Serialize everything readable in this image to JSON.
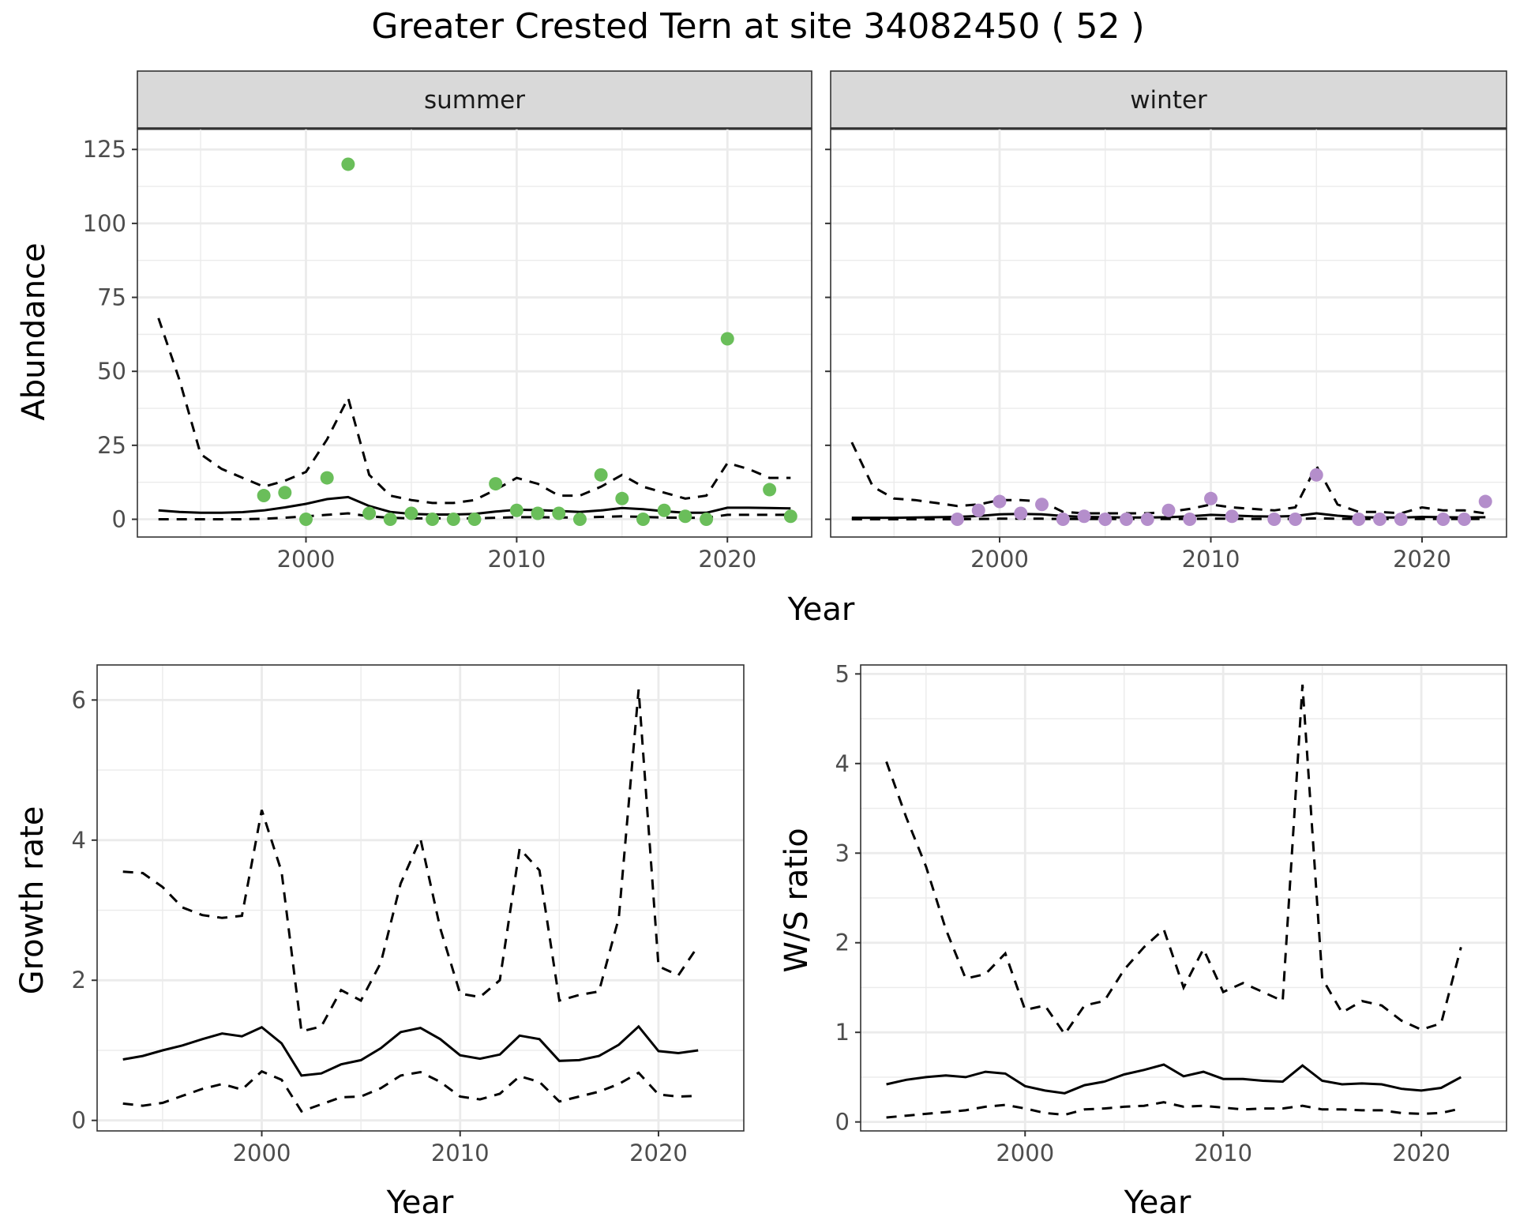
{
  "figure": {
    "title": "Greater Crested Tern at site 34082450 ( 52 )"
  },
  "chart_data": [
    {
      "type": "line",
      "panel": "summer",
      "strip_label": "summer",
      "xlabel": "Year",
      "ylabel": "Abundance",
      "xlim": [
        1992,
        2024
      ],
      "ylim": [
        -6,
        132
      ],
      "xticks": [
        2000,
        2010,
        2020
      ],
      "yticks": [
        0,
        25,
        50,
        75,
        100,
        125
      ],
      "grid": true,
      "point_color": "#6ABE5A",
      "series": [
        {
          "role": "estimate",
          "style": "solid",
          "x": [
            1993,
            1994,
            1995,
            1996,
            1997,
            1998,
            1999,
            2000,
            2001,
            2002,
            2003,
            2004,
            2005,
            2006,
            2007,
            2008,
            2009,
            2010,
            2011,
            2012,
            2013,
            2014,
            2015,
            2016,
            2017,
            2018,
            2019,
            2020,
            2021,
            2022,
            2023
          ],
          "y": [
            3,
            2.5,
            2.2,
            2.2,
            2.4,
            3,
            4,
            5.2,
            6.8,
            7.5,
            4.5,
            2.5,
            1.8,
            1.6,
            1.6,
            1.8,
            2.6,
            3.2,
            3.1,
            2.8,
            2.5,
            3,
            3.8,
            3.4,
            2.7,
            2.2,
            2.2,
            3.9,
            3.9,
            3.8,
            3.7
          ]
        },
        {
          "role": "upper",
          "style": "dashed",
          "x": [
            1993,
            1994,
            1995,
            1996,
            1997,
            1998,
            1999,
            2000,
            2001,
            2002,
            2003,
            2004,
            2005,
            2006,
            2007,
            2008,
            2009,
            2010,
            2011,
            2012,
            2013,
            2014,
            2015,
            2016,
            2017,
            2018,
            2019,
            2020,
            2021,
            2022,
            2023
          ],
          "y": [
            68,
            47,
            22,
            17,
            14,
            11,
            13,
            16,
            27,
            41,
            15,
            8,
            6.5,
            5.5,
            5.5,
            6.5,
            10,
            14,
            12,
            8,
            8,
            11,
            15,
            11,
            9,
            7,
            8,
            19,
            17,
            14,
            14
          ]
        },
        {
          "role": "lower",
          "style": "dashed",
          "x": [
            1993,
            1994,
            1995,
            1996,
            1997,
            1998,
            1999,
            2000,
            2001,
            2002,
            2003,
            2004,
            2005,
            2006,
            2007,
            2008,
            2009,
            2010,
            2011,
            2012,
            2013,
            2014,
            2015,
            2016,
            2017,
            2018,
            2019,
            2020,
            2021,
            2022,
            2023
          ],
          "y": [
            0,
            0,
            0,
            0,
            0,
            0.2,
            0.5,
            1,
            1.5,
            2,
            1,
            0.5,
            0.3,
            0.3,
            0.3,
            0.3,
            0.5,
            0.7,
            0.7,
            0.6,
            0.6,
            0.8,
            1,
            0.8,
            0.6,
            0.5,
            0.5,
            1.5,
            1.5,
            1.5,
            1.5
          ]
        },
        {
          "role": "observed",
          "style": "points",
          "x": [
            1998,
            1999,
            2000,
            2001,
            2002,
            2003,
            2004,
            2005,
            2006,
            2007,
            2008,
            2009,
            2010,
            2011,
            2012,
            2013,
            2014,
            2015,
            2016,
            2017,
            2018,
            2019,
            2020,
            2022,
            2023
          ],
          "y": [
            8,
            9,
            0,
            14,
            120,
            2,
            0,
            2,
            0,
            0,
            0,
            12,
            3,
            2,
            2,
            0,
            15,
            7,
            0,
            3,
            1,
            0,
            61,
            10,
            1
          ]
        }
      ]
    },
    {
      "type": "line",
      "panel": "winter",
      "strip_label": "winter",
      "xlabel": "Year",
      "ylabel": "Abundance",
      "xlim": [
        1992,
        2024
      ],
      "ylim": [
        -6,
        132
      ],
      "xticks": [
        2000,
        2010,
        2020
      ],
      "yticks": [
        0,
        25,
        50,
        75,
        100,
        125
      ],
      "grid": true,
      "point_color": "#B48ECB",
      "series": [
        {
          "role": "estimate",
          "style": "solid",
          "x": [
            1993,
            1994,
            1995,
            1996,
            1997,
            1998,
            1999,
            2000,
            2001,
            2002,
            2003,
            2004,
            2005,
            2006,
            2007,
            2008,
            2009,
            2010,
            2011,
            2012,
            2013,
            2014,
            2015,
            2016,
            2017,
            2018,
            2019,
            2020,
            2021,
            2022,
            2023
          ],
          "y": [
            0.5,
            0.5,
            0.5,
            0.6,
            0.7,
            0.8,
            1.1,
            1.7,
            1.8,
            1.7,
            1.1,
            0.8,
            0.7,
            0.6,
            0.6,
            0.7,
            1,
            1.5,
            1.3,
            1,
            0.9,
            1.1,
            2,
            1.2,
            0.7,
            0.6,
            0.6,
            0.8,
            0.7,
            0.6,
            0.7
          ]
        },
        {
          "role": "upper",
          "style": "dashed",
          "x": [
            1993,
            1994,
            1995,
            1996,
            1997,
            1998,
            1999,
            2000,
            2001,
            2002,
            2003,
            2004,
            2005,
            2006,
            2007,
            2008,
            2009,
            2010,
            2011,
            2012,
            2013,
            2014,
            2015,
            2016,
            2017,
            2018,
            2019,
            2020,
            2021,
            2022,
            2023
          ],
          "y": [
            26,
            11,
            7,
            6.5,
            5.5,
            4.5,
            5,
            6.5,
            6.5,
            6,
            2.5,
            2,
            2,
            2,
            2,
            2.5,
            3.5,
            5,
            4,
            3.5,
            3,
            4,
            18,
            5,
            2.5,
            2.5,
            2,
            4,
            3,
            3,
            2
          ]
        },
        {
          "role": "lower",
          "style": "dashed",
          "x": [
            1993,
            1994,
            1995,
            1996,
            1997,
            1998,
            1999,
            2000,
            2001,
            2002,
            2003,
            2004,
            2005,
            2006,
            2007,
            2008,
            2009,
            2010,
            2011,
            2012,
            2013,
            2014,
            2015,
            2016,
            2017,
            2018,
            2019,
            2020,
            2021,
            2022,
            2023
          ],
          "y": [
            0,
            0,
            0,
            0,
            0,
            0,
            0.1,
            0.2,
            0.2,
            0.2,
            0.1,
            0.1,
            0.1,
            0.1,
            0.1,
            0.1,
            0.1,
            0.2,
            0.2,
            0.1,
            0.1,
            0.1,
            0.3,
            0.2,
            0.1,
            0.1,
            0.1,
            0.1,
            0.1,
            0.1,
            0.1
          ]
        },
        {
          "role": "observed",
          "style": "points",
          "x": [
            1998,
            1999,
            2000,
            2001,
            2002,
            2003,
            2004,
            2005,
            2006,
            2007,
            2008,
            2009,
            2010,
            2011,
            2013,
            2014,
            2015,
            2017,
            2018,
            2019,
            2021,
            2022,
            2023
          ],
          "y": [
            0,
            3,
            6,
            2,
            5,
            0,
            1,
            0,
            0,
            0,
            3,
            0,
            7,
            1,
            0,
            0,
            15,
            0,
            0,
            0,
            0,
            0,
            6
          ]
        }
      ]
    },
    {
      "type": "line",
      "panel": "growth",
      "xlabel": "Year",
      "ylabel": "Growth rate",
      "xlim": [
        1991.7,
        2024.3
      ],
      "ylim": [
        -0.15,
        6.5
      ],
      "xticks": [
        2000,
        2010,
        2020
      ],
      "yticks": [
        0,
        2,
        4,
        6
      ],
      "grid": true,
      "series": [
        {
          "role": "estimate",
          "style": "solid",
          "x": [
            1993,
            1994,
            1995,
            1996,
            1997,
            1998,
            1999,
            2000,
            2001,
            2002,
            2003,
            2004,
            2005,
            2006,
            2007,
            2008,
            2009,
            2010,
            2011,
            2012,
            2013,
            2014,
            2015,
            2016,
            2017,
            2018,
            2019,
            2020,
            2021,
            2022
          ],
          "y": [
            0.87,
            0.92,
            1,
            1.07,
            1.16,
            1.24,
            1.2,
            1.33,
            1.1,
            0.64,
            0.67,
            0.8,
            0.86,
            1.03,
            1.26,
            1.32,
            1.16,
            0.93,
            0.88,
            0.94,
            1.21,
            1.16,
            0.85,
            0.86,
            0.92,
            1.08,
            1.34,
            0.99,
            0.96,
            1
          ]
        },
        {
          "role": "upper",
          "style": "dashed",
          "x": [
            1993,
            1994,
            1995,
            1996,
            1997,
            1998,
            1999,
            2000,
            2001,
            2002,
            2003,
            2004,
            2005,
            2006,
            2007,
            2008,
            2009,
            2010,
            2011,
            2012,
            2013,
            2014,
            2015,
            2016,
            2017,
            2018,
            2019,
            2020,
            2021,
            2022
          ],
          "y": [
            3.55,
            3.53,
            3.33,
            3.04,
            2.93,
            2.89,
            2.92,
            4.43,
            3.55,
            1.27,
            1.34,
            1.86,
            1.71,
            2.25,
            3.38,
            4.02,
            2.74,
            1.81,
            1.76,
            2,
            3.88,
            3.57,
            1.71,
            1.79,
            1.84,
            2.89,
            6.15,
            2.2,
            2.07,
            2.49
          ]
        },
        {
          "role": "lower",
          "style": "dashed",
          "x": [
            1993,
            1994,
            1995,
            1996,
            1997,
            1998,
            1999,
            2000,
            2001,
            2002,
            2003,
            2004,
            2005,
            2006,
            2007,
            2008,
            2009,
            2010,
            2011,
            2012,
            2013,
            2014,
            2015,
            2016,
            2017,
            2018,
            2019,
            2020,
            2021,
            2022
          ],
          "y": [
            0.24,
            0.21,
            0.25,
            0.35,
            0.45,
            0.52,
            0.44,
            0.7,
            0.58,
            0.13,
            0.23,
            0.33,
            0.34,
            0.46,
            0.64,
            0.69,
            0.55,
            0.34,
            0.3,
            0.38,
            0.63,
            0.55,
            0.27,
            0.34,
            0.41,
            0.52,
            0.68,
            0.37,
            0.34,
            0.35
          ]
        }
      ]
    },
    {
      "type": "line",
      "panel": "ratio",
      "xlabel": "Year",
      "ylabel": "W/S ratio",
      "xlim": [
        1991.7,
        2024.3
      ],
      "ylim": [
        -0.1,
        5.1
      ],
      "xticks": [
        2000,
        2010,
        2020
      ],
      "yticks": [
        0,
        1,
        2,
        3,
        4,
        5
      ],
      "grid": true,
      "series": [
        {
          "role": "estimate",
          "style": "solid",
          "x": [
            1993,
            1994,
            1995,
            1996,
            1997,
            1998,
            1999,
            2000,
            2001,
            2002,
            2003,
            2004,
            2005,
            2006,
            2007,
            2008,
            2009,
            2010,
            2011,
            2012,
            2013,
            2014,
            2015,
            2016,
            2017,
            2018,
            2019,
            2020,
            2021,
            2022
          ],
          "y": [
            0.42,
            0.47,
            0.5,
            0.52,
            0.5,
            0.56,
            0.54,
            0.4,
            0.35,
            0.32,
            0.41,
            0.45,
            0.53,
            0.58,
            0.64,
            0.51,
            0.56,
            0.48,
            0.48,
            0.46,
            0.45,
            0.63,
            0.46,
            0.42,
            0.43,
            0.42,
            0.37,
            0.35,
            0.38,
            0.5
          ]
        },
        {
          "role": "upper",
          "style": "dashed",
          "x": [
            1993,
            1994,
            1995,
            1996,
            1997,
            1998,
            1999,
            2000,
            2001,
            2002,
            2003,
            2004,
            2005,
            2006,
            2007,
            2008,
            2009,
            2010,
            2011,
            2012,
            2013,
            2014,
            2015,
            2016,
            2017,
            2018,
            2019,
            2020,
            2021,
            2022
          ],
          "y": [
            4.02,
            3.4,
            2.85,
            2.15,
            1.6,
            1.65,
            1.88,
            1.25,
            1.3,
            0.98,
            1.3,
            1.35,
            1.7,
            1.95,
            2.15,
            1.5,
            1.93,
            1.45,
            1.55,
            1.45,
            1.35,
            4.88,
            1.6,
            1.22,
            1.35,
            1.3,
            1.13,
            1.03,
            1.1,
            1.95
          ]
        },
        {
          "role": "lower",
          "style": "dashed",
          "x": [
            1993,
            1994,
            1995,
            1996,
            1997,
            1998,
            1999,
            2000,
            2001,
            2002,
            2003,
            2004,
            2005,
            2006,
            2007,
            2008,
            2009,
            2010,
            2011,
            2012,
            2013,
            2014,
            2015,
            2016,
            2017,
            2018,
            2019,
            2020,
            2021,
            2022
          ],
          "y": [
            0.05,
            0.07,
            0.09,
            0.11,
            0.13,
            0.17,
            0.19,
            0.15,
            0.1,
            0.08,
            0.14,
            0.15,
            0.17,
            0.18,
            0.22,
            0.17,
            0.18,
            0.16,
            0.14,
            0.15,
            0.15,
            0.18,
            0.14,
            0.14,
            0.13,
            0.13,
            0.1,
            0.09,
            0.1,
            0.15
          ]
        }
      ]
    }
  ]
}
